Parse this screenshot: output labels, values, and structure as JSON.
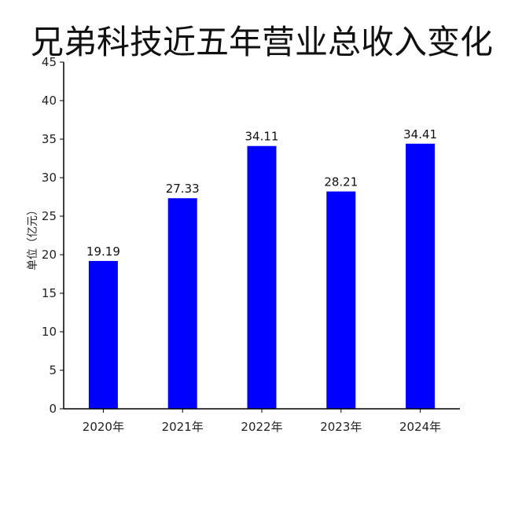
{
  "chart_data": {
    "type": "bar",
    "title": "兄弟科技近五年营业总收入变化",
    "xlabel": "",
    "ylabel": "单位（亿元）",
    "categories": [
      "2020年",
      "2021年",
      "2022年",
      "2023年",
      "2024年"
    ],
    "values": [
      19.19,
      27.33,
      34.11,
      28.21,
      34.41
    ],
    "value_labels": [
      "19.19",
      "27.33",
      "34.11",
      "28.21",
      "34.41"
    ],
    "ylim": [
      0,
      45
    ],
    "yticks": [
      0,
      5,
      10,
      15,
      20,
      25,
      30,
      35,
      40,
      45
    ],
    "bar_color": "#0000ff",
    "grid": false,
    "legend": "none"
  }
}
